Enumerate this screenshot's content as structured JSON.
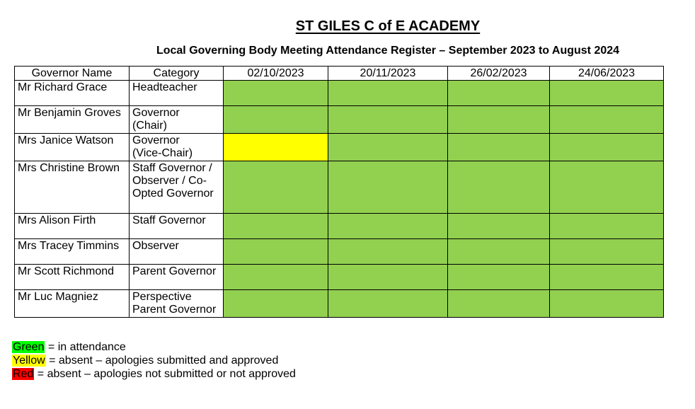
{
  "page": {
    "title": "ST GILES C of E ACADEMY",
    "subtitle": "Local Governing Body Meeting Attendance Register – September 2023 to August 2024"
  },
  "table": {
    "headers": [
      "Governor Name",
      "Category",
      "02/10/2023",
      "20/11/2023",
      "26/02/2023",
      "24/06/2023"
    ],
    "rows": [
      {
        "name": "Mr Richard Grace",
        "category": "Headteacher",
        "attendance": [
          "green",
          "green",
          "green",
          "green"
        ]
      },
      {
        "name": "Mr Benjamin Groves",
        "category": "Governor\n(Chair)",
        "attendance": [
          "green",
          "green",
          "green",
          "green"
        ]
      },
      {
        "name": "Mrs Janice Watson",
        "category": "Governor\n(Vice-Chair)",
        "attendance": [
          "yellow",
          "green",
          "green",
          "green"
        ]
      },
      {
        "name": "Mrs Christine Brown",
        "category": "Staff Governor /\nObserver / Co-\nOpted Governor",
        "attendance": [
          "green",
          "green",
          "green",
          "green"
        ],
        "tall": true
      },
      {
        "name": "Mrs Alison Firth",
        "category": "Staff Governor",
        "attendance": [
          "green",
          "green",
          "green",
          "green"
        ]
      },
      {
        "name": "Mrs Tracey Timmins",
        "category": "Observer",
        "attendance": [
          "green",
          "green",
          "green",
          "green"
        ]
      },
      {
        "name": "Mr Scott Richmond",
        "category": "Parent Governor",
        "attendance": [
          "green",
          "green",
          "green",
          "green"
        ]
      },
      {
        "name": "Mr Luc Magniez",
        "category": "Perspective\nParent Governor",
        "attendance": [
          "green",
          "green",
          "green",
          "green"
        ]
      }
    ]
  },
  "legend": [
    {
      "label": "Green",
      "color": "#00ff00",
      "text": "= in attendance"
    },
    {
      "label": "Yellow",
      "color": "#ffff00",
      "text": "= absent – apologies submitted and approved"
    },
    {
      "label": "Red",
      "color": "#ff0000",
      "text": "= absent – apologies not submitted or not approved"
    }
  ],
  "colors": {
    "attendance_green": "#92d050",
    "attendance_yellow": "#ffff00",
    "attendance_red": "#ff0000",
    "border": "#000000"
  }
}
